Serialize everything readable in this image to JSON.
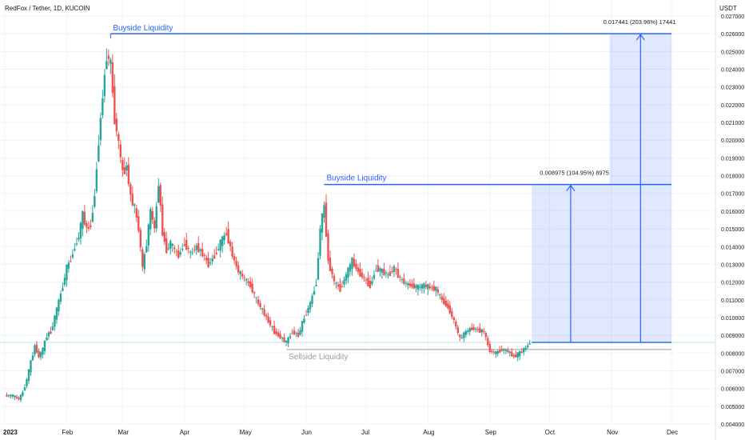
{
  "header": {
    "symbol": "RedFox / Tether, 1D, KUCOIN",
    "currency": "USDT"
  },
  "colors": {
    "up": "#26a69a",
    "down": "#ef5350",
    "drawing": "#2962ff",
    "drawing_fill": "#2962ff",
    "sellside": "#9e9e9e",
    "grid": "#f0f3fa",
    "price_line": "#26a69a"
  },
  "annotations": {
    "buyside_top": "Buyside Liquidity",
    "buyside_mid": "Buyside Liquidity",
    "sellside": "Sellside Liquidity",
    "measure_1": "0.008975 (104.95%) 8975",
    "measure_2": "0.017441 (203.96%) 17441"
  },
  "chart_data": {
    "type": "candlestick",
    "title": "RedFox / Tether, 1D, KUCOIN",
    "ylabel": "USDT",
    "ylim": [
      0.004,
      0.027
    ],
    "y_ticks": [
      "0.004000",
      "0.005000",
      "0.006000",
      "0.007000",
      "0.008000",
      "0.009000",
      "0.010000",
      "0.011000",
      "0.012000",
      "0.013000",
      "0.014000",
      "0.015000",
      "0.016000",
      "0.017000",
      "0.018000",
      "0.019000",
      "0.020000",
      "0.021000",
      "0.022000",
      "0.023000",
      "0.024000",
      "0.025000",
      "0.026000",
      "0.027000"
    ],
    "x_ticks": [
      "2023",
      "Feb",
      "Mar",
      "Apr",
      "May",
      "Jun",
      "Jul",
      "Aug",
      "Sep",
      "Oct",
      "Nov",
      "Dec"
    ],
    "x_range": [
      "2023-01-01",
      "2023-12-01"
    ],
    "grid": true,
    "close_series": [
      [
        "2023-01-01",
        0.0056
      ],
      [
        "2023-01-05",
        0.0056
      ],
      [
        "2023-01-08",
        0.0054
      ],
      [
        "2023-01-10",
        0.0058
      ],
      [
        "2023-01-12",
        0.0065
      ],
      [
        "2023-01-14",
        0.0075
      ],
      [
        "2023-01-16",
        0.0084
      ],
      [
        "2023-01-18",
        0.0078
      ],
      [
        "2023-01-20",
        0.0082
      ],
      [
        "2023-01-22",
        0.009
      ],
      [
        "2023-01-24",
        0.0092
      ],
      [
        "2023-01-26",
        0.01
      ],
      [
        "2023-01-28",
        0.0109
      ],
      [
        "2023-01-30",
        0.0118
      ],
      [
        "2023-02-01",
        0.0128
      ],
      [
        "2023-02-03",
        0.0133
      ],
      [
        "2023-02-05",
        0.014
      ],
      [
        "2023-02-07",
        0.0146
      ],
      [
        "2023-02-09",
        0.0158
      ],
      [
        "2023-02-11",
        0.015
      ],
      [
        "2023-02-13",
        0.0152
      ],
      [
        "2023-02-15",
        0.017
      ],
      [
        "2023-02-17",
        0.02
      ],
      [
        "2023-02-19",
        0.0225
      ],
      [
        "2023-02-21",
        0.0248
      ],
      [
        "2023-02-23",
        0.0243
      ],
      [
        "2023-02-25",
        0.0212
      ],
      [
        "2023-02-27",
        0.0198
      ],
      [
        "2023-03-01",
        0.0182
      ],
      [
        "2023-03-03",
        0.0185
      ],
      [
        "2023-03-05",
        0.0168
      ],
      [
        "2023-03-07",
        0.0162
      ],
      [
        "2023-03-09",
        0.015
      ],
      [
        "2023-03-11",
        0.0128
      ],
      [
        "2023-03-13",
        0.0142
      ],
      [
        "2023-03-15",
        0.016
      ],
      [
        "2023-03-17",
        0.015
      ],
      [
        "2023-03-19",
        0.0176
      ],
      [
        "2023-03-21",
        0.0148
      ],
      [
        "2023-03-23",
        0.0138
      ],
      [
        "2023-03-25",
        0.0142
      ],
      [
        "2023-03-27",
        0.0138
      ],
      [
        "2023-03-29",
        0.0135
      ],
      [
        "2023-04-01",
        0.0142
      ],
      [
        "2023-04-04",
        0.0136
      ],
      [
        "2023-04-07",
        0.014
      ],
      [
        "2023-04-10",
        0.0136
      ],
      [
        "2023-04-13",
        0.013
      ],
      [
        "2023-04-16",
        0.0135
      ],
      [
        "2023-04-19",
        0.0142
      ],
      [
        "2023-04-22",
        0.0148
      ],
      [
        "2023-04-25",
        0.0135
      ],
      [
        "2023-04-28",
        0.0126
      ],
      [
        "2023-05-01",
        0.0122
      ],
      [
        "2023-05-04",
        0.0118
      ],
      [
        "2023-05-07",
        0.011
      ],
      [
        "2023-05-10",
        0.0104
      ],
      [
        "2023-05-13",
        0.0098
      ],
      [
        "2023-05-16",
        0.0092
      ],
      [
        "2023-05-19",
        0.0089
      ],
      [
        "2023-05-22",
        0.0086
      ],
      [
        "2023-05-25",
        0.0092
      ],
      [
        "2023-05-28",
        0.009
      ],
      [
        "2023-05-31",
        0.01
      ],
      [
        "2023-06-03",
        0.0108
      ],
      [
        "2023-06-06",
        0.012
      ],
      [
        "2023-06-08",
        0.015
      ],
      [
        "2023-06-10",
        0.0163
      ],
      [
        "2023-06-12",
        0.0132
      ],
      [
        "2023-06-15",
        0.012
      ],
      [
        "2023-06-18",
        0.0116
      ],
      [
        "2023-06-21",
        0.0124
      ],
      [
        "2023-06-24",
        0.0132
      ],
      [
        "2023-06-27",
        0.0126
      ],
      [
        "2023-06-30",
        0.0122
      ],
      [
        "2023-07-03",
        0.0118
      ],
      [
        "2023-07-06",
        0.0128
      ],
      [
        "2023-07-09",
        0.0126
      ],
      [
        "2023-07-12",
        0.0124
      ],
      [
        "2023-07-15",
        0.0128
      ],
      [
        "2023-07-18",
        0.0122
      ],
      [
        "2023-07-21",
        0.0119
      ],
      [
        "2023-07-24",
        0.0118
      ],
      [
        "2023-07-27",
        0.0117
      ],
      [
        "2023-07-30",
        0.0118
      ],
      [
        "2023-08-02",
        0.0117
      ],
      [
        "2023-08-05",
        0.0116
      ],
      [
        "2023-08-08",
        0.011
      ],
      [
        "2023-08-11",
        0.0106
      ],
      [
        "2023-08-14",
        0.0098
      ],
      [
        "2023-08-17",
        0.0088
      ],
      [
        "2023-08-20",
        0.0092
      ],
      [
        "2023-08-23",
        0.0094
      ],
      [
        "2023-08-26",
        0.0093
      ],
      [
        "2023-08-29",
        0.0092
      ],
      [
        "2023-09-01",
        0.0081
      ],
      [
        "2023-09-04",
        0.008
      ],
      [
        "2023-09-07",
        0.0082
      ],
      [
        "2023-09-10",
        0.0081
      ],
      [
        "2023-09-13",
        0.0078
      ],
      [
        "2023-09-16",
        0.008
      ],
      [
        "2023-09-19",
        0.0083
      ],
      [
        "2023-09-21",
        0.0086
      ]
    ],
    "levels": {
      "buyside_top": 0.026,
      "buyside_mid": 0.0175,
      "sellside": 0.0082,
      "current": 0.0086
    },
    "measure_boxes": [
      {
        "from_date": "2023-09-22",
        "to_date": "2023-10-31",
        "from_value": 0.0086,
        "to_value": 0.0175,
        "label": "0.008975 (104.95%) 8975"
      },
      {
        "from_date": "2023-10-31",
        "to_date": "2023-12-01",
        "from_value": 0.0086,
        "to_value": 0.026,
        "label": "0.017441 (203.96%) 17441"
      }
    ]
  }
}
